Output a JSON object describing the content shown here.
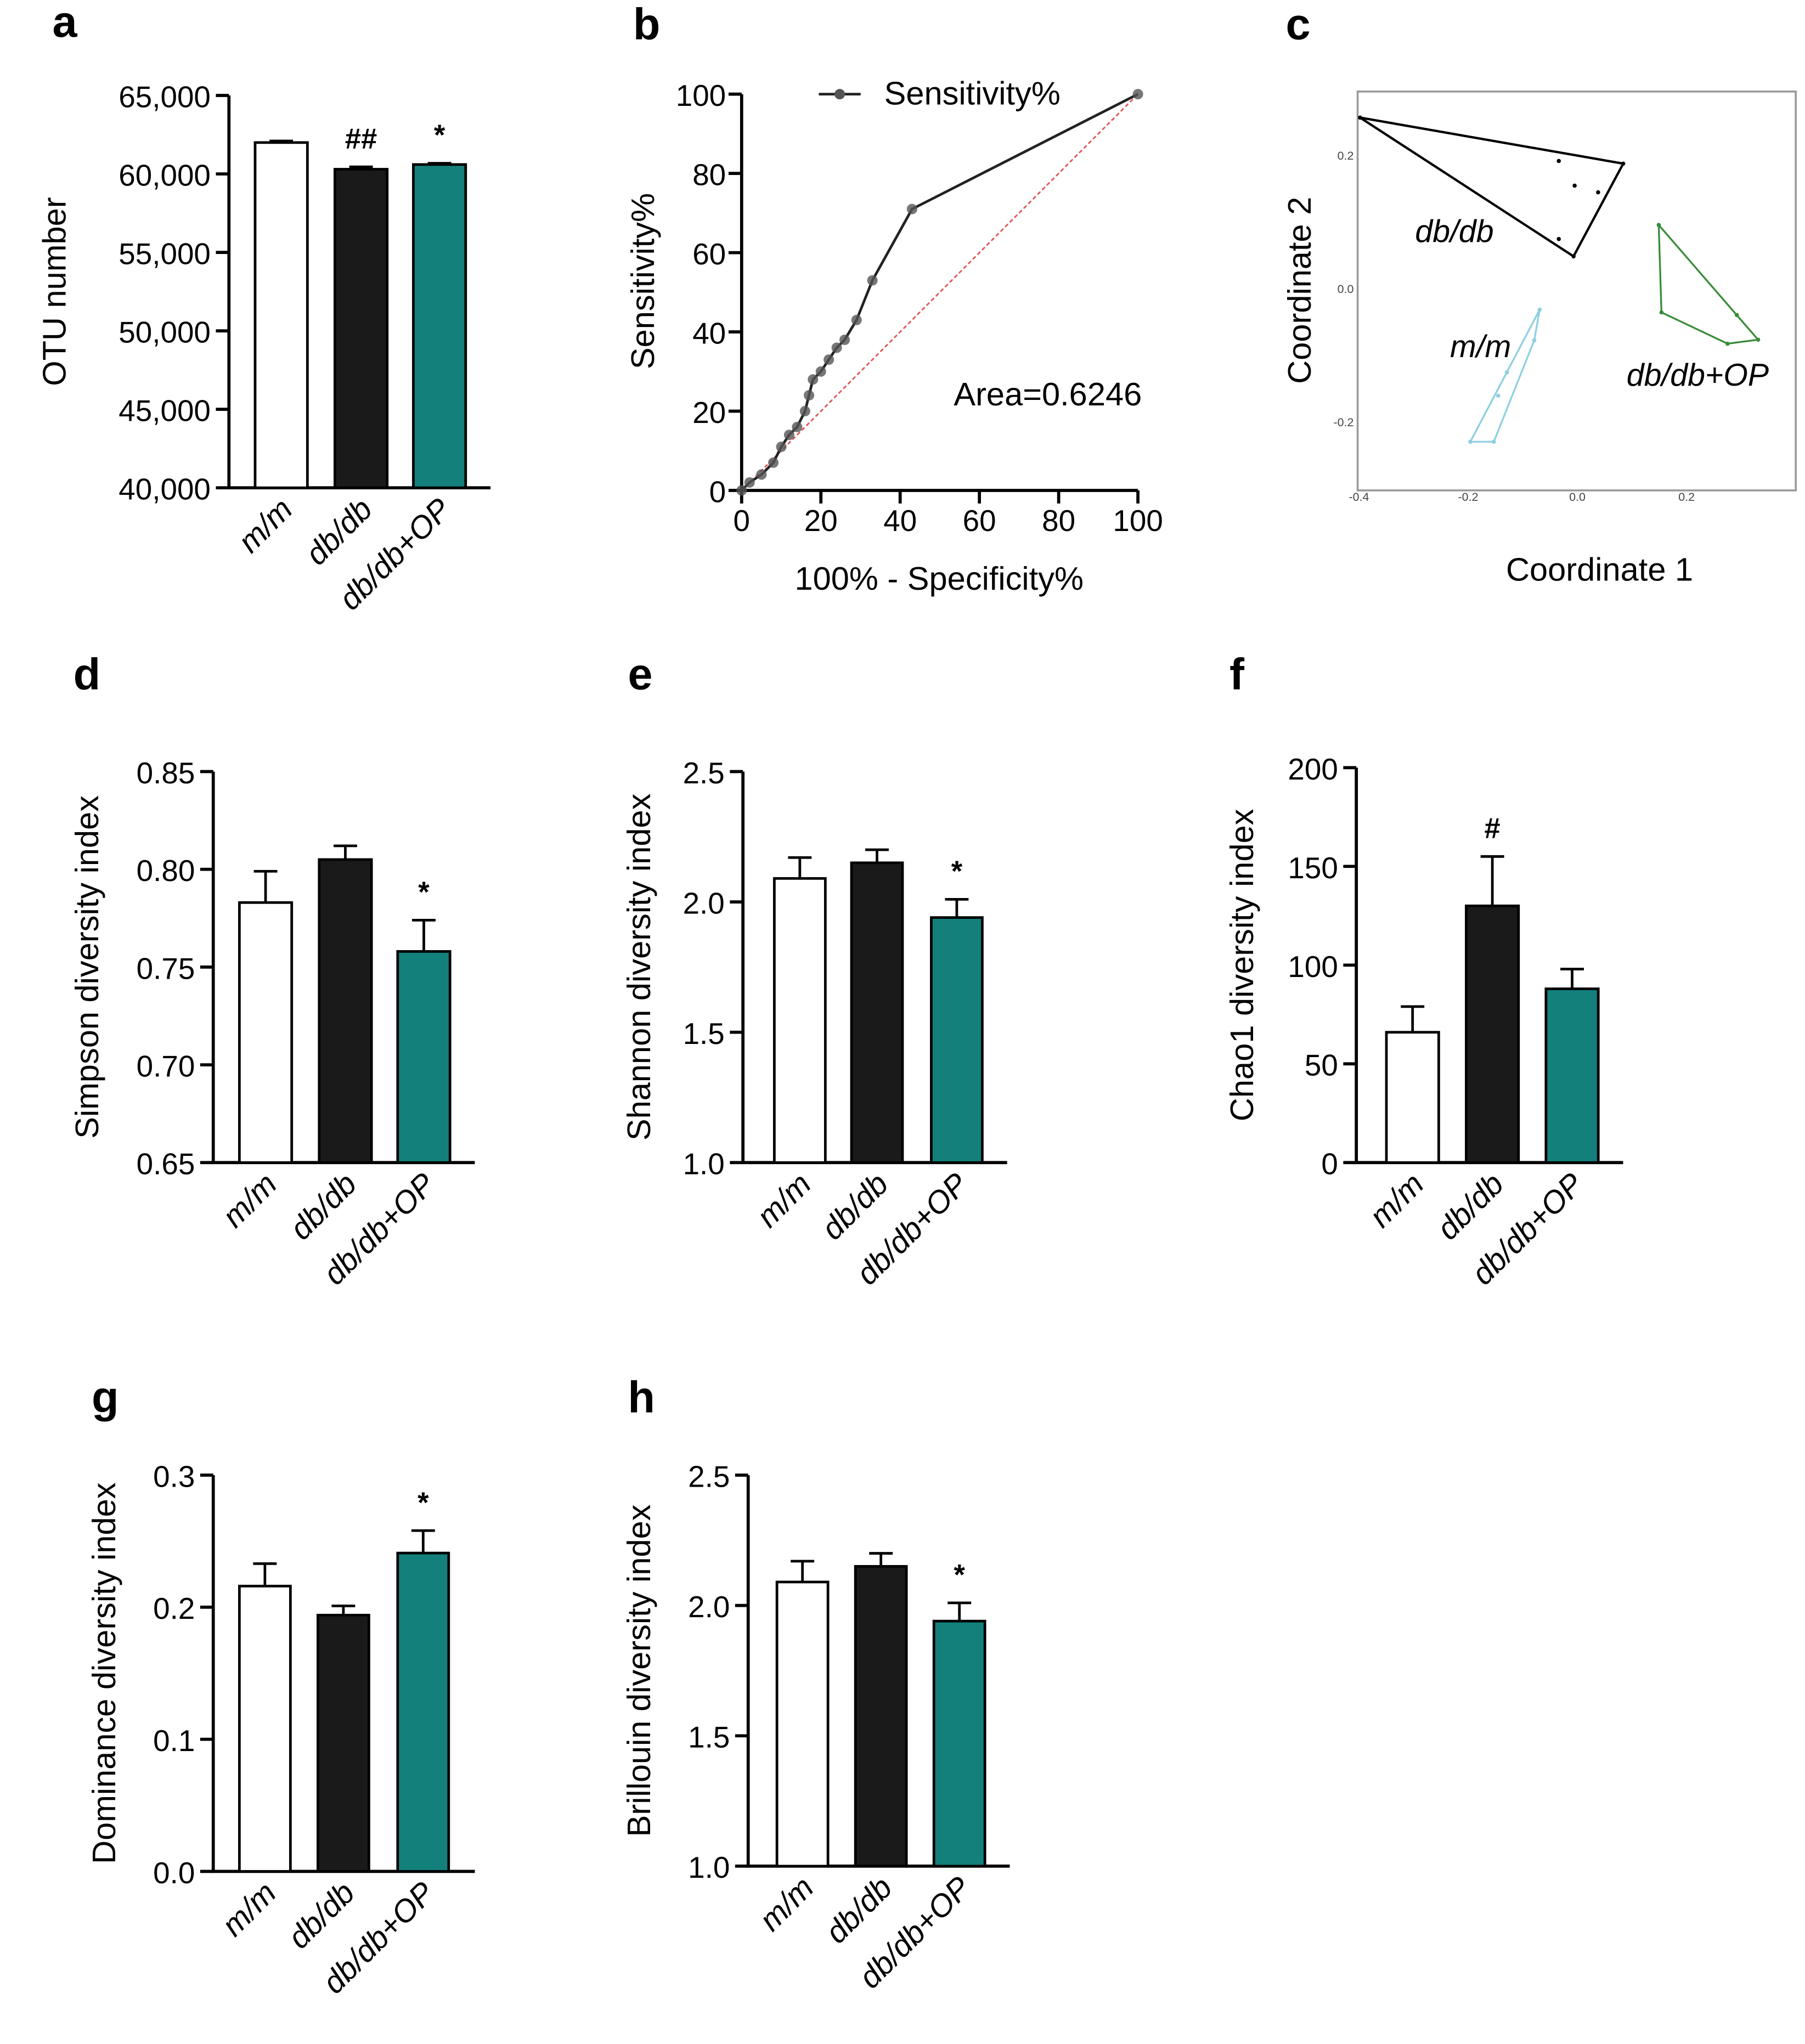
{
  "panel_letters": [
    "a",
    "b",
    "c",
    "d",
    "e",
    "f",
    "g",
    "h"
  ],
  "colors": {
    "mm": "#ffffff",
    "dbdb": "#1a1a1a",
    "op": "#13807c",
    "roc_line": "#222222",
    "ref_line": "#e05555",
    "pcoa_dbdb": "#000000",
    "pcoa_mm": "#8fd0e0",
    "pcoa_op": "#3a8c3a"
  },
  "chart_data": [
    {
      "panel": "a",
      "type": "bar",
      "categories": [
        "m/m",
        "db/db",
        "db/db+OP"
      ],
      "values": [
        62000,
        60300,
        60600
      ],
      "errors": [
        100,
        150,
        80
      ],
      "significance": [
        "",
        "##",
        "*"
      ],
      "ylabel": "OTU number",
      "ylim": [
        40000,
        65000
      ],
      "yticks": [
        "40,000",
        "45,000",
        "50,000",
        "55,000",
        "60,000",
        "65,000"
      ]
    },
    {
      "panel": "b",
      "type": "line",
      "series": [
        {
          "name": "Sensitivity%",
          "x": [
            0,
            2,
            5,
            8,
            10,
            12,
            14,
            16,
            17,
            18,
            20,
            22,
            24,
            26,
            29,
            33,
            43,
            100
          ],
          "y": [
            0,
            2,
            4,
            7,
            11,
            14,
            16,
            20,
            24,
            28,
            30,
            33,
            36,
            38,
            43,
            53,
            71,
            100
          ]
        }
      ],
      "reference_line": {
        "x": [
          0,
          100
        ],
        "y": [
          0,
          100
        ]
      },
      "annotation": "Area=0.6246",
      "xlabel": "100% - Specificity%",
      "ylabel": "Sensitivity%",
      "xlim": [
        0,
        100
      ],
      "ylim": [
        0,
        100
      ],
      "xticks": [
        "0",
        "20",
        "40",
        "60",
        "80",
        "100"
      ],
      "yticks": [
        "0",
        "20",
        "40",
        "60",
        "80",
        "100"
      ],
      "legend": "top-center"
    },
    {
      "panel": "c",
      "type": "scatter",
      "xlabel": "Coordinate 1",
      "ylabel": "Coordinate 2",
      "xlim": [
        -0.4,
        0.4
      ],
      "ylim": [
        -0.3,
        0.3
      ],
      "xticks": [
        "-0.4",
        "-0.2",
        "0.0",
        "0.2"
      ],
      "yticks": [
        "0.2",
        "0.0",
        "-0.2"
      ],
      "groups": [
        {
          "name": "db/db",
          "hull": [
            [
              -0.398,
              0.257
            ],
            [
              0.084,
              0.188
            ],
            [
              -0.007,
              0.049
            ]
          ],
          "points": [
            [
              -0.034,
              0.192
            ],
            [
              -0.005,
              0.155
            ],
            [
              0.038,
              0.145
            ],
            [
              -0.034,
              0.075
            ]
          ]
        },
        {
          "name": "m/m",
          "hull": [
            [
              -0.069,
              -0.031
            ],
            [
              -0.196,
              -0.229
            ],
            [
              -0.153,
              -0.229
            ],
            [
              -0.079,
              -0.077
            ]
          ],
          "points": [
            [
              -0.129,
              -0.125
            ],
            [
              -0.145,
              -0.16
            ]
          ]
        },
        {
          "name": "db/db+OP",
          "hull": [
            [
              0.149,
              0.096
            ],
            [
              0.154,
              -0.035
            ],
            [
              0.275,
              -0.082
            ],
            [
              0.331,
              -0.076
            ]
          ],
          "points": [
            [
              0.292,
              -0.039
            ]
          ]
        }
      ]
    },
    {
      "panel": "d",
      "type": "bar",
      "categories": [
        "m/m",
        "db/db",
        "db/db+OP"
      ],
      "values": [
        0.783,
        0.805,
        0.758
      ],
      "errors": [
        0.016,
        0.007,
        0.016
      ],
      "significance": [
        "",
        "",
        "*"
      ],
      "ylabel": "Simpson diversity  index",
      "ylim": [
        0.65,
        0.85
      ],
      "yticks": [
        "0.65",
        "0.70",
        "0.75",
        "0.80",
        "0.85"
      ]
    },
    {
      "panel": "e",
      "type": "bar",
      "categories": [
        "m/m",
        "db/db",
        "db/db+OP"
      ],
      "values": [
        2.09,
        2.15,
        1.94
      ],
      "errors": [
        0.08,
        0.05,
        0.07
      ],
      "significance": [
        "",
        "",
        "*"
      ],
      "ylabel": "Shannon diversity index",
      "ylim": [
        1.0,
        2.5
      ],
      "yticks": [
        "1.0",
        "1.5",
        "2.0",
        "2.5"
      ]
    },
    {
      "panel": "f",
      "type": "bar",
      "categories": [
        "m/m",
        "db/db",
        "db/db+OP"
      ],
      "values": [
        66,
        130,
        88
      ],
      "errors": [
        13,
        25,
        10
      ],
      "significance": [
        "",
        "#",
        ""
      ],
      "ylabel": "Chao1 diversity  index",
      "ylim": [
        0,
        200
      ],
      "yticks": [
        "0",
        "50",
        "100",
        "150",
        "200"
      ]
    },
    {
      "panel": "g",
      "type": "bar",
      "categories": [
        "m/m",
        "db/db",
        "db/db+OP"
      ],
      "values": [
        0.216,
        0.194,
        0.241
      ],
      "errors": [
        0.017,
        0.007,
        0.017
      ],
      "significance": [
        "",
        "",
        "*"
      ],
      "ylabel": "Dominance diversity index",
      "ylim": [
        0,
        0.3
      ],
      "yticks": [
        "0.0",
        "0.1",
        "0.2",
        "0.3"
      ]
    },
    {
      "panel": "h",
      "type": "bar",
      "categories": [
        "m/m",
        "db/db",
        "db/db+OP"
      ],
      "values": [
        2.09,
        2.15,
        1.94
      ],
      "errors": [
        0.08,
        0.05,
        0.07
      ],
      "significance": [
        "",
        "",
        "*"
      ],
      "ylabel": "Brillouin diversity index",
      "ylim": [
        1.0,
        2.5
      ],
      "yticks": [
        "1.0",
        "1.5",
        "2.0",
        "2.5"
      ]
    }
  ]
}
